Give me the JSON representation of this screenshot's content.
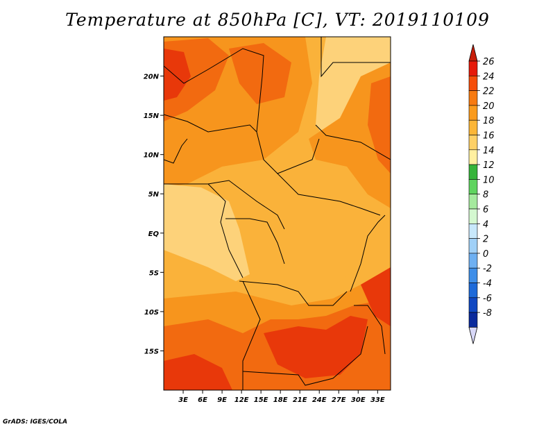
{
  "title": "Temperature at 850hPa [C], VT: 2019110109",
  "credit": "GrADS: IGES/COLA",
  "map": {
    "lon_range": [
      0,
      35
    ],
    "lat_range": [
      -20,
      25
    ],
    "lat_ticks": [
      {
        "value": 20,
        "label": "20N"
      },
      {
        "value": 15,
        "label": "15N"
      },
      {
        "value": 10,
        "label": "10N"
      },
      {
        "value": 5,
        "label": "5N"
      },
      {
        "value": 0,
        "label": "EQ"
      },
      {
        "value": -5,
        "label": "5S"
      },
      {
        "value": -10,
        "label": "10S"
      },
      {
        "value": -15,
        "label": "15S"
      }
    ],
    "lon_ticks": [
      {
        "value": 3,
        "label": "3E"
      },
      {
        "value": 6,
        "label": "6E"
      },
      {
        "value": 9,
        "label": "9E"
      },
      {
        "value": 12,
        "label": "12E"
      },
      {
        "value": 15,
        "label": "15E"
      },
      {
        "value": 18,
        "label": "18E"
      },
      {
        "value": 21,
        "label": "21E"
      },
      {
        "value": 24,
        "label": "24E"
      },
      {
        "value": 27,
        "label": "27E"
      },
      {
        "value": 30,
        "label": "30E"
      },
      {
        "value": 33,
        "label": "33E"
      }
    ]
  },
  "colorbar": {
    "levels": [
      {
        "label": "26",
        "color": "#e61a0a"
      },
      {
        "label": "24",
        "color": "#f54e0a"
      },
      {
        "label": "22",
        "color": "#f77a10"
      },
      {
        "label": "20",
        "color": "#fa9b1c"
      },
      {
        "label": "18",
        "color": "#fbb637"
      },
      {
        "label": "16",
        "color": "#fed066"
      },
      {
        "label": "14",
        "color": "#fff0a0"
      },
      {
        "label": "12",
        "color": "#36b43a"
      },
      {
        "label": "10",
        "color": "#5fd45f"
      },
      {
        "label": "8",
        "color": "#a5ea9e"
      },
      {
        "label": "6",
        "color": "#d4f8d0"
      },
      {
        "label": "4",
        "color": "#c8e8fb"
      },
      {
        "label": "2",
        "color": "#a0d0f7"
      },
      {
        "label": "0",
        "color": "#6eb0f2"
      },
      {
        "label": "-2",
        "color": "#3e8ee8"
      },
      {
        "label": "-4",
        "color": "#1d6ad9"
      },
      {
        "label": "-6",
        "color": "#1048c2"
      },
      {
        "label": "-8",
        "color": "#0a2a9c"
      }
    ],
    "top_arrow_color": "#c81e0a",
    "bottom_arrow_color": "#060c55",
    "bottom_end_color": "#d8d8f8"
  },
  "field_colors": {
    "t24": "#e8380a",
    "t22": "#f26a10",
    "t20": "#f7951d",
    "t18": "#fab23a",
    "t16": "#fdd27a"
  }
}
